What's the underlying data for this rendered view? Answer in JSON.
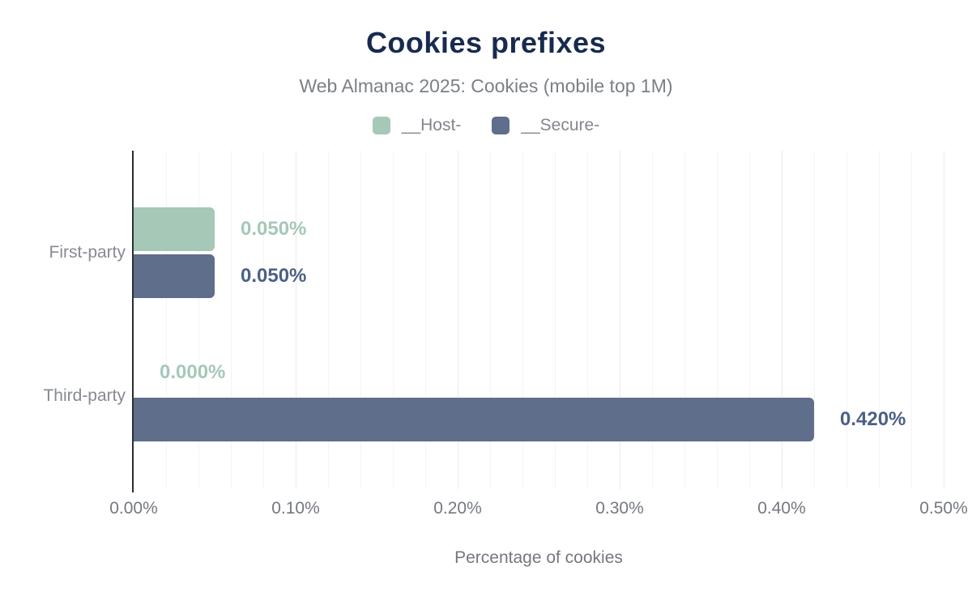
{
  "chart_data": {
    "type": "bar",
    "orientation": "horizontal",
    "title": "Cookies prefixes",
    "subtitle": "Web Almanac 2025: Cookies (mobile top 1M)",
    "xlabel": "Percentage of cookies",
    "categories": [
      "First-party",
      "Third-party"
    ],
    "series": [
      {
        "name": "__Host-",
        "color": "#a5c8b7",
        "label_color": "#a5c8b7",
        "values": [
          0.05,
          0.0
        ],
        "value_labels": [
          "0.050%",
          "0.000%"
        ]
      },
      {
        "name": "__Secure-",
        "color": "#5e6e8b",
        "label_color": "#4c6086",
        "values": [
          0.05,
          0.42
        ],
        "value_labels": [
          "0.050%",
          "0.420%"
        ]
      }
    ],
    "xlim": [
      0,
      0.5
    ],
    "xtick_labels": [
      "0.00%",
      "0.10%",
      "0.20%",
      "0.30%",
      "0.40%",
      "0.50%"
    ],
    "grid": true,
    "legend_position": "top",
    "colors": {
      "title": "#182a4e",
      "muted_text": "#7b8087",
      "axis_line": "#2a2e35",
      "gridline_minor": "#f3f4f6",
      "gridline_major": "#e9ebee"
    }
  }
}
